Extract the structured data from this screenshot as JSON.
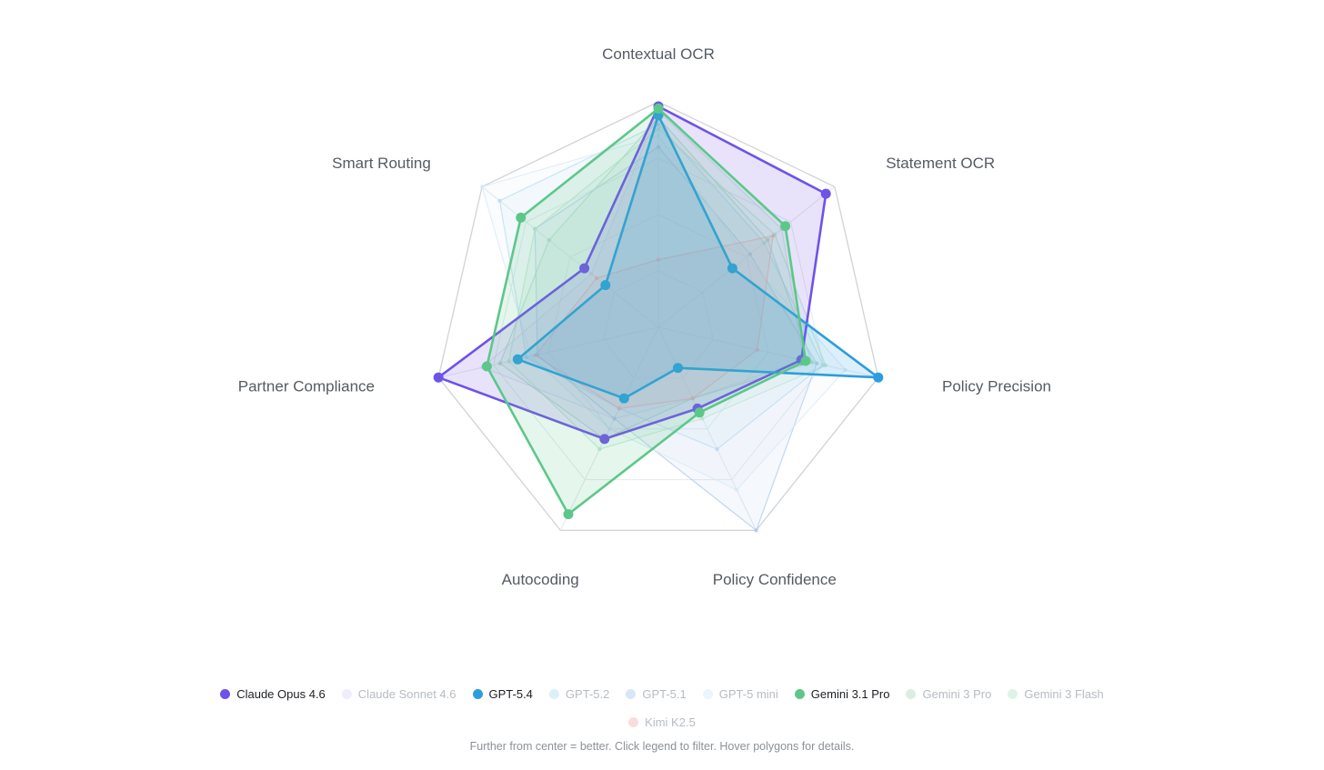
{
  "chart_data": {
    "type": "radar",
    "title": "",
    "categories": [
      "Contextual OCR",
      "Statement OCR",
      "Policy Precision",
      "Policy Confidence",
      "Autocoding",
      "Partner Compliance",
      "Smart Routing"
    ],
    "rlim": [
      0,
      1
    ],
    "grid": true,
    "legend_placement": "bottom",
    "series": [
      {
        "name": "Claude Opus 4.6",
        "color": "#6f52e8",
        "active": true,
        "values": [
          0.98,
          0.95,
          0.65,
          0.4,
          0.55,
          1.0,
          0.42
        ]
      },
      {
        "name": "Claude Sonnet 4.6",
        "color": "#dcd6fb",
        "active": false,
        "values": [
          0.96,
          0.7,
          0.66,
          0.35,
          0.45,
          0.8,
          0.38
        ]
      },
      {
        "name": "GPT-5.4",
        "color": "#2c9ddd",
        "active": true,
        "values": [
          0.94,
          0.42,
          1.0,
          0.2,
          0.35,
          0.64,
          0.3
        ]
      },
      {
        "name": "GPT-5.2",
        "color": "#b4dcf1",
        "active": false,
        "values": [
          0.9,
          0.6,
          0.75,
          0.6,
          0.4,
          0.6,
          0.9
        ]
      },
      {
        "name": "GPT-5.1",
        "color": "#a9c9ea",
        "active": false,
        "values": [
          0.8,
          0.52,
          0.72,
          1.0,
          0.45,
          0.55,
          0.7
        ]
      },
      {
        "name": "GPT-5 mini",
        "color": "#d4e9f7",
        "active": false,
        "values": [
          0.85,
          0.5,
          0.85,
          0.8,
          0.5,
          0.58,
          1.0
        ]
      },
      {
        "name": "Gemini 3.1 Pro",
        "color": "#5dc78a",
        "active": true,
        "values": [
          0.97,
          0.72,
          0.67,
          0.42,
          0.92,
          0.78,
          0.78
        ]
      },
      {
        "name": "Gemini 3 Pro",
        "color": "#aed8bd",
        "active": false,
        "values": [
          0.93,
          0.62,
          0.7,
          0.35,
          0.55,
          0.72,
          0.62
        ]
      },
      {
        "name": "Gemini 3 Flash",
        "color": "#b6e5cb",
        "active": false,
        "values": [
          0.88,
          0.66,
          0.76,
          0.45,
          0.6,
          0.68,
          0.7
        ]
      },
      {
        "name": "Kimi K2.5",
        "color": "#f1b4b4",
        "active": false,
        "values": [
          0.3,
          0.65,
          0.45,
          0.35,
          0.4,
          0.56,
          0.35
        ]
      }
    ]
  },
  "footnote": "Further from center = better. Click legend to filter. Hover polygons for details."
}
